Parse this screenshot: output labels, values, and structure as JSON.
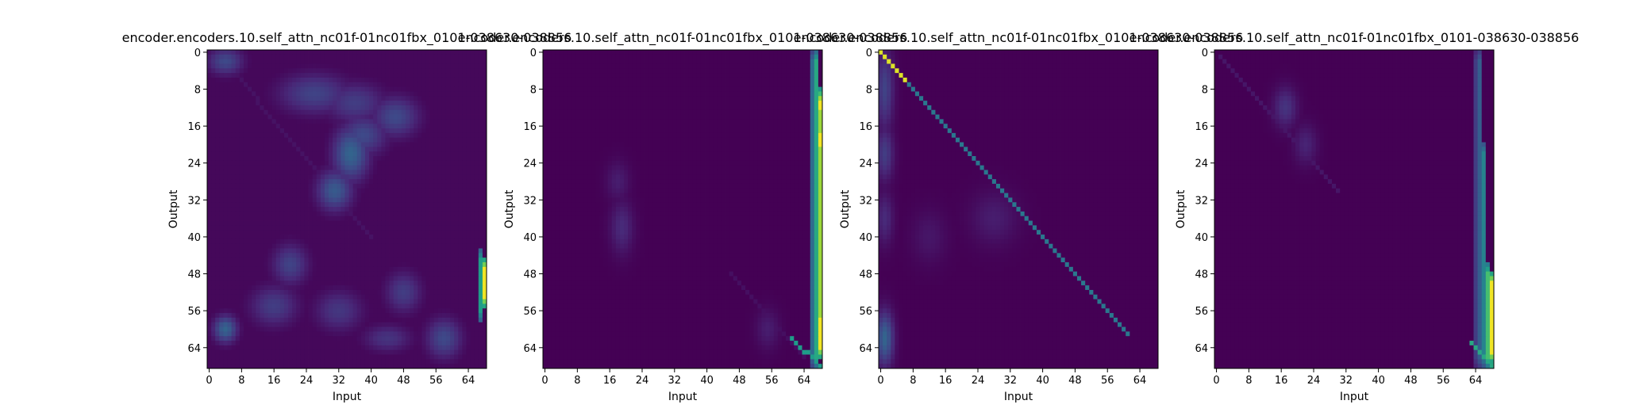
{
  "figure": {
    "panels": [
      {
        "title": "encoder.encoders.10.self_attn_nc01f-01nc01fbx_0101-038630-038856"
      },
      {
        "title": "encoder.encoders.10.self_attn_nc01f-01nc01fbx_0101-038630-038856"
      },
      {
        "title": "encoder.encoders.10.self_attn_nc01f-01nc01fbx_0101-038630-038856"
      },
      {
        "title": "encoder.encoders.10.self_attn_nc01f-01nc01fbx_0101-038630-038856"
      }
    ],
    "xlabel": "Input",
    "ylabel": "Output",
    "tick_labels": [
      "0",
      "8",
      "16",
      "24",
      "32",
      "40",
      "48",
      "56",
      "64"
    ]
  },
  "chart_data": [
    {
      "type": "heatmap",
      "title": "encoder.encoders.10.self_attn_nc01f-01nc01fbx_0101-038630-038856",
      "xlabel": "Input",
      "ylabel": "Output",
      "size": 69,
      "xlim": [
        0,
        68
      ],
      "ylim": [
        68,
        0
      ],
      "xticks": [
        0,
        8,
        16,
        24,
        32,
        40,
        48,
        56,
        64
      ],
      "yticks": [
        0,
        8,
        16,
        24,
        32,
        40,
        48,
        56,
        64
      ],
      "colormap": "viridis",
      "background": 0.02,
      "blobs": [
        {
          "x": 4,
          "y": 2,
          "sx": 3,
          "sy": 2,
          "v": 0.22
        },
        {
          "x": 26,
          "y": 9,
          "sx": 6,
          "sy": 3,
          "v": 0.2
        },
        {
          "x": 36,
          "y": 11,
          "sx": 5,
          "sy": 3,
          "v": 0.18
        },
        {
          "x": 46,
          "y": 14,
          "sx": 4,
          "sy": 3,
          "v": 0.22
        },
        {
          "x": 35,
          "y": 22,
          "sx": 3,
          "sy": 4,
          "v": 0.32
        },
        {
          "x": 31,
          "y": 30,
          "sx": 3,
          "sy": 3,
          "v": 0.28
        },
        {
          "x": 38,
          "y": 18,
          "sx": 4,
          "sy": 3,
          "v": 0.22
        },
        {
          "x": 20,
          "y": 46,
          "sx": 3,
          "sy": 3,
          "v": 0.2
        },
        {
          "x": 16,
          "y": 55,
          "sx": 4,
          "sy": 3,
          "v": 0.18
        },
        {
          "x": 4,
          "y": 60,
          "sx": 2,
          "sy": 2,
          "v": 0.32
        },
        {
          "x": 32,
          "y": 56,
          "sx": 4,
          "sy": 3,
          "v": 0.16
        },
        {
          "x": 48,
          "y": 52,
          "sx": 3,
          "sy": 3,
          "v": 0.18
        },
        {
          "x": 58,
          "y": 62,
          "sx": 3,
          "sy": 3,
          "v": 0.22
        },
        {
          "x": 44,
          "y": 62,
          "sx": 4,
          "sy": 2,
          "v": 0.15
        }
      ],
      "diagonal": {
        "from": [
          2,
          0
        ],
        "to": [
          40,
          40
        ],
        "v": 0.05
      },
      "columns": [
        {
          "x": 67,
          "y0": 43,
          "y1": 58,
          "v": 0.55
        },
        {
          "x": 68,
          "y0": 45,
          "y1": 55,
          "v": 0.98
        }
      ]
    },
    {
      "type": "heatmap",
      "title": "encoder.encoders.10.self_attn_nc01f-01nc01fbx_0101-038630-038856",
      "xlabel": "Input",
      "ylabel": "Output",
      "size": 69,
      "xlim": [
        0,
        68
      ],
      "ylim": [
        68,
        0
      ],
      "xticks": [
        0,
        8,
        16,
        24,
        32,
        40,
        48,
        56,
        64
      ],
      "yticks": [
        0,
        8,
        16,
        24,
        32,
        40,
        48,
        56,
        64
      ],
      "colormap": "viridis",
      "background": 0.0,
      "blobs": [
        {
          "x": 19,
          "y": 38,
          "sx": 2,
          "sy": 4,
          "v": 0.12
        },
        {
          "x": 18,
          "y": 28,
          "sx": 2,
          "sy": 3,
          "v": 0.08
        },
        {
          "x": 55,
          "y": 60,
          "sx": 2,
          "sy": 3,
          "v": 0.08
        }
      ],
      "diagonal": {
        "from": [
          46,
          48
        ],
        "to": [
          64,
          66
        ],
        "v": 0.04
      },
      "columns": [
        {
          "x": 66,
          "y0": 0,
          "y1": 68,
          "v": 0.35
        },
        {
          "x": 67,
          "y0": 0,
          "y1": 68,
          "v": 0.6
        },
        {
          "x": 68,
          "y0": 8,
          "y1": 65,
          "v": 0.85
        },
        {
          "x": 68,
          "y0": 9,
          "y1": 14,
          "v": 0.98
        },
        {
          "x": 68,
          "y0": 16,
          "y1": 22,
          "v": 0.98
        },
        {
          "x": 68,
          "y0": 56,
          "y1": 66,
          "v": 0.98
        }
      ],
      "steps": {
        "from": [
          61,
          62
        ],
        "to": [
          68,
          68
        ],
        "v": 0.55
      }
    },
    {
      "type": "heatmap",
      "title": "encoder.encoders.10.self_attn_nc01f-01nc01fbx_0101-038630-038856",
      "xlabel": "Input",
      "ylabel": "Output",
      "size": 69,
      "xlim": [
        0,
        68
      ],
      "ylim": [
        68,
        0
      ],
      "xticks": [
        0,
        8,
        16,
        24,
        32,
        40,
        48,
        56,
        64
      ],
      "yticks": [
        0,
        8,
        16,
        24,
        32,
        40,
        48,
        56,
        64
      ],
      "colormap": "viridis",
      "background": 0.0,
      "blobs": [
        {
          "x": 1,
          "y": 8,
          "sx": 1.5,
          "sy": 6,
          "v": 0.2
        },
        {
          "x": 1,
          "y": 22,
          "sx": 1.5,
          "sy": 4,
          "v": 0.18
        },
        {
          "x": 1,
          "y": 36,
          "sx": 1.5,
          "sy": 4,
          "v": 0.12
        },
        {
          "x": 1,
          "y": 62,
          "sx": 1.5,
          "sy": 4,
          "v": 0.32
        },
        {
          "x": 28,
          "y": 36,
          "sx": 4,
          "sy": 4,
          "v": 0.08
        },
        {
          "x": 12,
          "y": 40,
          "sx": 3,
          "sy": 4,
          "v": 0.06
        }
      ],
      "diagonal": {
        "from": [
          0,
          0
        ],
        "to": [
          61,
          61
        ],
        "v": 0.4
      },
      "diagonal_head": {
        "from": [
          0,
          0
        ],
        "to": [
          6,
          6
        ],
        "v": 0.95
      },
      "columns": []
    },
    {
      "type": "heatmap",
      "title": "encoder.encoders.10.self_attn_nc01f-01nc01fbx_0101-038630-038856",
      "xlabel": "Input",
      "ylabel": "Output",
      "size": 69,
      "xlim": [
        0,
        68
      ],
      "ylim": [
        68,
        0
      ],
      "xticks": [
        0,
        8,
        16,
        24,
        32,
        40,
        48,
        56,
        64
      ],
      "yticks": [
        0,
        8,
        16,
        24,
        32,
        40,
        48,
        56,
        64
      ],
      "colormap": "viridis",
      "background": 0.0,
      "blobs": [
        {
          "x": 17,
          "y": 12,
          "sx": 2,
          "sy": 3,
          "v": 0.15
        },
        {
          "x": 22,
          "y": 20,
          "sx": 2,
          "sy": 3,
          "v": 0.1
        }
      ],
      "diagonal": {
        "from": [
          1,
          1
        ],
        "to": [
          30,
          30
        ],
        "v": 0.06
      },
      "columns": [
        {
          "x": 64,
          "y0": 0,
          "y1": 68,
          "v": 0.18
        },
        {
          "x": 65,
          "y0": 0,
          "y1": 68,
          "v": 0.3
        },
        {
          "x": 66,
          "y0": 20,
          "y1": 68,
          "v": 0.45
        },
        {
          "x": 67,
          "y0": 46,
          "y1": 68,
          "v": 0.7
        },
        {
          "x": 68,
          "y0": 48,
          "y1": 67,
          "v": 0.98
        }
      ],
      "steps": {
        "from": [
          63,
          63
        ],
        "to": [
          68,
          68
        ],
        "v": 0.6
      }
    }
  ]
}
